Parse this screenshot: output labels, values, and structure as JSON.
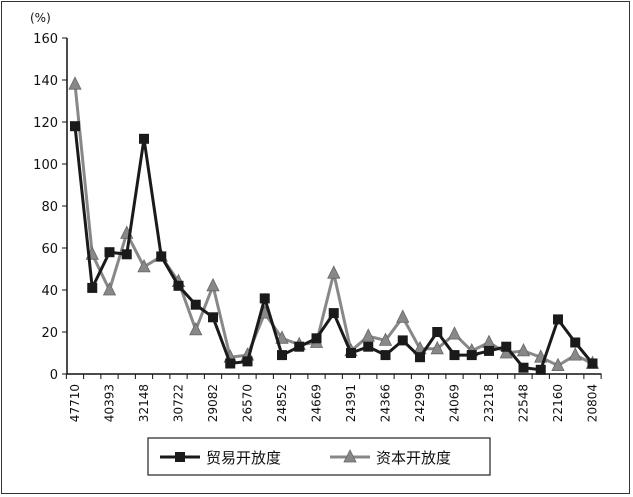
{
  "chart_data": {
    "type": "line",
    "title": "",
    "ylabel": "(%)",
    "xlabel": "",
    "ylim": [
      0,
      160
    ],
    "yticks": [
      0,
      20,
      40,
      60,
      80,
      100,
      120,
      140,
      160
    ],
    "grid": false,
    "legend_position": "bottom",
    "x_tick_labels": [
      "47710",
      "40393",
      "32148",
      "30722",
      "29082",
      "26570",
      "24852",
      "24669",
      "24391",
      "24366",
      "24299",
      "24069",
      "23218",
      "22548",
      "22160",
      "20804"
    ],
    "x_tick_label_every": 2,
    "series": [
      {
        "name": "贸易开放度",
        "marker": "square",
        "color": "#1a1a1a",
        "values": [
          118,
          41,
          58,
          57,
          112,
          56,
          42,
          33,
          27,
          5,
          6,
          36,
          9,
          13,
          17,
          29,
          10,
          13,
          9,
          16,
          8,
          20,
          9,
          9,
          11,
          13,
          3,
          2,
          26,
          15,
          5
        ]
      },
      {
        "name": "资本开放度",
        "marker": "triangle",
        "color": "#888888",
        "values": [
          138,
          57,
          40,
          67,
          51,
          56,
          44,
          21,
          42,
          8,
          9,
          29,
          17,
          14,
          15,
          48,
          11,
          18,
          16,
          27,
          12,
          12,
          19,
          11,
          15,
          10,
          11,
          8,
          4,
          9,
          5
        ]
      }
    ]
  }
}
